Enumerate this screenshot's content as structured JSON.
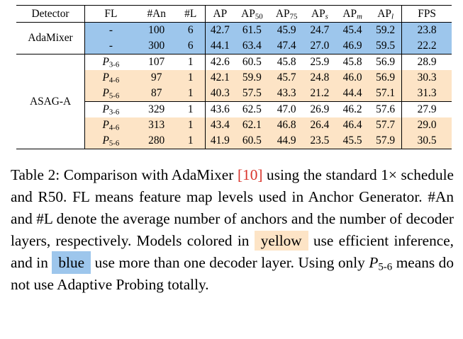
{
  "table": {
    "headers": {
      "detector": "Detector",
      "fl": "FL",
      "an": "#An",
      "l": "#L",
      "ap": "AP",
      "ap50": [
        "AP",
        "50"
      ],
      "ap75": [
        "AP",
        "75"
      ],
      "aps": [
        "AP",
        "s"
      ],
      "apm": [
        "AP",
        "m"
      ],
      "apl": [
        "AP",
        "l"
      ],
      "fps": "FPS"
    },
    "groups": [
      {
        "detector": "AdaMixer",
        "rows": [
          {
            "fl": "-",
            "an": "100",
            "l": "6",
            "ap": "42.7",
            "ap50": "61.5",
            "ap75": "45.9",
            "aps": "24.7",
            "apm": "45.4",
            "apl": "59.2",
            "fps": "23.8",
            "color": "blue"
          },
          {
            "fl": "-",
            "an": "300",
            "l": "6",
            "ap": "44.1",
            "ap50": "63.4",
            "ap75": "47.4",
            "aps": "27.0",
            "apm": "46.9",
            "apl": "59.5",
            "fps": "22.2",
            "color": "blue"
          }
        ]
      },
      {
        "detector": "ASAG-A",
        "rows": [
          {
            "fl": [
              "P",
              "3-6"
            ],
            "an": "107",
            "l": "1",
            "ap": "42.6",
            "ap50": "60.5",
            "ap75": "45.8",
            "aps": "25.9",
            "apm": "45.8",
            "apl": "56.9",
            "fps": "28.9",
            "color": "none"
          },
          {
            "fl": [
              "P",
              "4-6"
            ],
            "an": "97",
            "l": "1",
            "ap": "42.1",
            "ap50": "59.9",
            "ap75": "45.7",
            "aps": "24.8",
            "apm": "46.0",
            "apl": "56.9",
            "fps": "30.3",
            "color": "yellow"
          },
          {
            "fl": [
              "P",
              "5-6"
            ],
            "an": "87",
            "l": "1",
            "ap": "40.3",
            "ap50": "57.5",
            "ap75": "43.3",
            "aps": "21.2",
            "apm": "44.4",
            "apl": "57.1",
            "fps": "31.3",
            "color": "yellow"
          },
          {
            "fl": [
              "P",
              "3-6"
            ],
            "an": "329",
            "l": "1",
            "ap": "43.6",
            "ap50": "62.5",
            "ap75": "47.0",
            "aps": "26.9",
            "apm": "46.2",
            "apl": "57.6",
            "fps": "27.9",
            "color": "none"
          },
          {
            "fl": [
              "P",
              "4-6"
            ],
            "an": "313",
            "l": "1",
            "ap": "43.4",
            "ap50": "62.1",
            "ap75": "46.8",
            "aps": "26.4",
            "apm": "46.4",
            "apl": "57.7",
            "fps": "29.0",
            "color": "yellow"
          },
          {
            "fl": [
              "P",
              "5-6"
            ],
            "an": "280",
            "l": "1",
            "ap": "41.9",
            "ap50": "60.5",
            "ap75": "44.9",
            "aps": "23.5",
            "apm": "45.5",
            "apl": "57.9",
            "fps": "30.5",
            "color": "yellow"
          }
        ]
      }
    ]
  },
  "caption": {
    "part1": "Table 2:  Comparison with AdaMixer ",
    "cite": "[10]",
    "part2": " using the standard 1× schedule and R50.  FL means feature map levels used in Anchor Generator.  #An and #L denote the average number of anchors and the number of decoder layers, respectively. Models colored in ",
    "yellow_word": "yellow",
    "part3": " use efficient inference, and in ",
    "blue_word": "blue",
    "part4": " use more than one decoder layer. Using only ",
    "p_symbol": "P",
    "p_sub": "5-6",
    "part5": " means do not use Adaptive Probing totally."
  },
  "colors": {
    "blue_highlight": "#9dc6ec",
    "yellow_highlight": "#fde4c6",
    "citation": "#d9342b"
  }
}
